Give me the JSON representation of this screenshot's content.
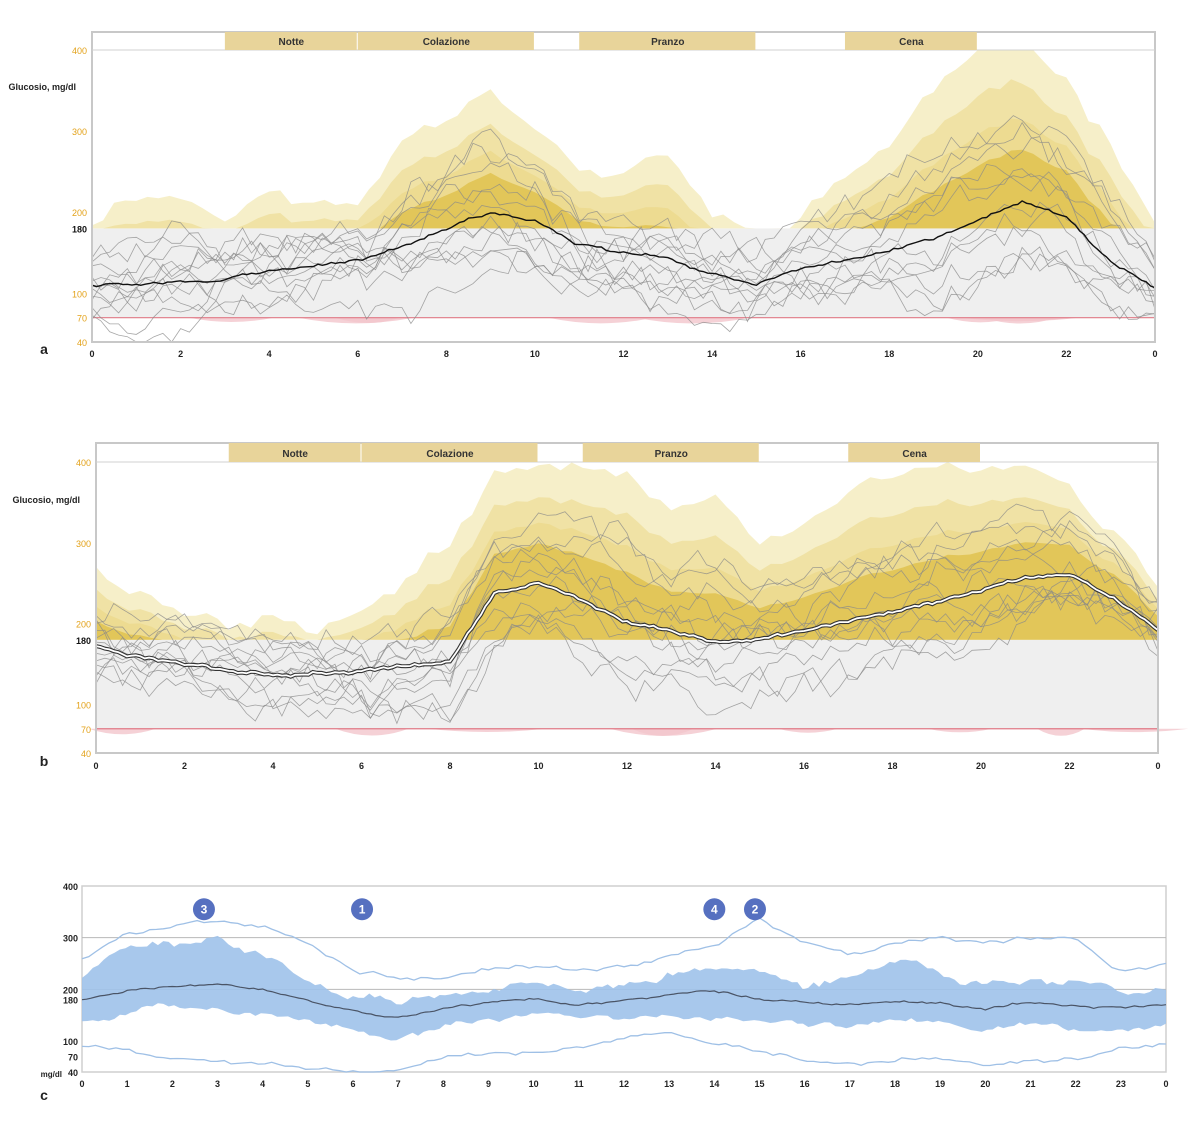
{
  "colors": {
    "yellow_light": "#f4ecc0",
    "yellow_mid": "#e9d27a",
    "yellow_dark": "#d9b52c",
    "gray_band": "#efefef",
    "pink": "#f2c6cc",
    "pink_line": "#e07a86",
    "tick_orange": "#e3a21a",
    "meal_bar": "#e8d49a",
    "blue_band": "#9ec2ea",
    "blue_line": "#9fc0e6",
    "badge": "#5670c0"
  },
  "chart_data": [
    {
      "id": "a",
      "type": "line",
      "panel_label": "a",
      "ylabel": "Glucosio, mg/dl",
      "xlim": [
        0,
        24
      ],
      "ylim": [
        40,
        400
      ],
      "x_ticks": [
        "0",
        "2",
        "4",
        "6",
        "8",
        "10",
        "12",
        "14",
        "16",
        "18",
        "20",
        "22",
        "0"
      ],
      "y_ticks": [
        {
          "value": 400,
          "label": "400",
          "color": "orange"
        },
        {
          "value": 300,
          "label": "300",
          "color": "orange"
        },
        {
          "value": 200,
          "label": "200",
          "color": "orange"
        },
        {
          "value": 180,
          "label": "180",
          "color": "black"
        },
        {
          "value": 100,
          "label": "100",
          "color": "orange"
        },
        {
          "value": 70,
          "label": "70",
          "color": "orange"
        },
        {
          "value": 40,
          "label": "40",
          "color": "orange"
        }
      ],
      "target_range": [
        70,
        180
      ],
      "meal_periods": [
        {
          "label": "Notte",
          "start": 3,
          "end": 6
        },
        {
          "label": "Colazione",
          "start": 6,
          "end": 10
        },
        {
          "label": "Pranzo",
          "start": 11,
          "end": 15
        },
        {
          "label": "Cena",
          "start": 17,
          "end": 20
        }
      ],
      "series": [
        {
          "name": "median",
          "x": [
            0,
            1,
            2,
            3,
            4,
            5,
            6,
            7,
            8,
            9,
            10,
            11,
            12,
            13,
            14,
            15,
            16,
            17,
            18,
            19,
            20,
            21,
            22,
            23,
            24
          ],
          "values": [
            110,
            112,
            116,
            120,
            126,
            132,
            142,
            158,
            178,
            200,
            188,
            160,
            150,
            140,
            120,
            108,
            128,
            142,
            152,
            168,
            188,
            212,
            198,
            140,
            102
          ]
        },
        {
          "name": "upper_envelope",
          "x": [
            0,
            1,
            2,
            3,
            4,
            5,
            6,
            7,
            8,
            9,
            10,
            11,
            12,
            13,
            14,
            15,
            16,
            17,
            18,
            19,
            20,
            21,
            22,
            23,
            24
          ],
          "values": [
            190,
            230,
            225,
            200,
            225,
            210,
            205,
            290,
            330,
            370,
            320,
            260,
            240,
            270,
            190,
            165,
            190,
            240,
            280,
            350,
            395,
            400,
            360,
            290,
            205
          ]
        }
      ]
    },
    {
      "id": "b",
      "type": "line",
      "panel_label": "b",
      "ylabel": "Glucosio, mg/dl",
      "xlim": [
        0,
        24
      ],
      "ylim": [
        40,
        400
      ],
      "x_ticks": [
        "0",
        "2",
        "4",
        "6",
        "8",
        "10",
        "12",
        "14",
        "16",
        "18",
        "20",
        "22",
        "0"
      ],
      "y_ticks": [
        {
          "value": 400,
          "label": "400",
          "color": "orange"
        },
        {
          "value": 300,
          "label": "300",
          "color": "orange"
        },
        {
          "value": 200,
          "label": "200",
          "color": "orange"
        },
        {
          "value": 180,
          "label": "180",
          "color": "black"
        },
        {
          "value": 100,
          "label": "100",
          "color": "orange"
        },
        {
          "value": 70,
          "label": "70",
          "color": "orange"
        },
        {
          "value": 40,
          "label": "40",
          "color": "orange"
        }
      ],
      "target_range": [
        70,
        180
      ],
      "meal_periods": [
        {
          "label": "Notte",
          "start": 3,
          "end": 6
        },
        {
          "label": "Colazione",
          "start": 6,
          "end": 10
        },
        {
          "label": "Pranzo",
          "start": 11,
          "end": 15
        },
        {
          "label": "Cena",
          "start": 17,
          "end": 20
        }
      ],
      "series": [
        {
          "name": "median",
          "x": [
            0,
            1,
            2,
            3,
            4,
            5,
            6,
            7,
            8,
            9,
            10,
            11,
            12,
            13,
            14,
            15,
            16,
            17,
            18,
            19,
            20,
            21,
            22,
            23,
            24
          ],
          "values": [
            172,
            160,
            150,
            142,
            136,
            138,
            140,
            146,
            150,
            238,
            254,
            232,
            206,
            192,
            180,
            182,
            190,
            200,
            212,
            226,
            242,
            256,
            262,
            236,
            192
          ]
        },
        {
          "name": "upper_envelope",
          "x": [
            0,
            1,
            2,
            3,
            4,
            5,
            6,
            7,
            8,
            9,
            10,
            11,
            12,
            13,
            14,
            15,
            16,
            17,
            18,
            19,
            20,
            21,
            22,
            23,
            24
          ],
          "values": [
            270,
            250,
            220,
            200,
            210,
            205,
            215,
            250,
            300,
            390,
            400,
            400,
            380,
            330,
            350,
            300,
            320,
            360,
            380,
            400,
            400,
            395,
            380,
            320,
            260
          ]
        }
      ]
    },
    {
      "id": "c",
      "type": "area",
      "panel_label": "c",
      "ylabel": "mg/dl",
      "xlim": [
        0,
        24
      ],
      "ylim": [
        40,
        400
      ],
      "x_ticks": [
        "0",
        "1",
        "2",
        "3",
        "4",
        "5",
        "6",
        "7",
        "8",
        "9",
        "10",
        "11",
        "12",
        "13",
        "14",
        "15",
        "16",
        "17",
        "18",
        "19",
        "20",
        "21",
        "22",
        "23",
        "0"
      ],
      "y_ticks": [
        {
          "value": 400,
          "label": "400"
        },
        {
          "value": 300,
          "label": "300"
        },
        {
          "value": 200,
          "label": "200"
        },
        {
          "value": 180,
          "label": "180"
        },
        {
          "value": 100,
          "label": "100"
        },
        {
          "value": 70,
          "label": "70"
        },
        {
          "value": 40,
          "label": "40"
        }
      ],
      "gridlines": [
        300,
        200
      ],
      "annotations": [
        {
          "label": "3",
          "x": 2.7,
          "y": 355
        },
        {
          "label": "1",
          "x": 6.2,
          "y": 355
        },
        {
          "label": "4",
          "x": 14.0,
          "y": 355
        },
        {
          "label": "2",
          "x": 14.9,
          "y": 355
        }
      ],
      "series": [
        {
          "name": "median",
          "x": [
            0,
            1,
            2,
            3,
            4,
            5,
            6,
            7,
            8,
            9,
            10,
            11,
            12,
            13,
            14,
            15,
            16,
            17,
            18,
            19,
            20,
            21,
            22,
            23,
            24
          ],
          "values": [
            180,
            195,
            208,
            210,
            200,
            180,
            160,
            150,
            166,
            176,
            180,
            166,
            176,
            186,
            194,
            180,
            170,
            170,
            176,
            172,
            160,
            174,
            170,
            164,
            170
          ]
        },
        {
          "name": "p75",
          "x": [
            0,
            1,
            2,
            3,
            4,
            5,
            6,
            7,
            8,
            9,
            10,
            11,
            12,
            13,
            14,
            15,
            16,
            17,
            18,
            19,
            20,
            21,
            22,
            23,
            24
          ],
          "values": [
            225,
            270,
            285,
            300,
            275,
            225,
            190,
            180,
            195,
            205,
            210,
            190,
            205,
            225,
            235,
            215,
            195,
            215,
            240,
            230,
            200,
            215,
            220,
            200,
            210
          ]
        },
        {
          "name": "p25",
          "x": [
            0,
            1,
            2,
            3,
            4,
            5,
            6,
            7,
            8,
            9,
            10,
            11,
            12,
            13,
            14,
            15,
            16,
            17,
            18,
            19,
            20,
            21,
            22,
            23,
            24
          ],
          "values": [
            140,
            150,
            160,
            155,
            150,
            140,
            125,
            110,
            130,
            145,
            145,
            135,
            140,
            150,
            150,
            145,
            140,
            135,
            140,
            135,
            125,
            130,
            125,
            125,
            130
          ]
        },
        {
          "name": "p90",
          "x": [
            0,
            1,
            2,
            3,
            4,
            5,
            6,
            7,
            8,
            9,
            10,
            11,
            12,
            13,
            14,
            15,
            16,
            17,
            18,
            19,
            20,
            21,
            22,
            23,
            24
          ],
          "values": [
            260,
            310,
            330,
            335,
            320,
            280,
            240,
            225,
            225,
            235,
            240,
            230,
            245,
            260,
            285,
            335,
            290,
            265,
            285,
            290,
            290,
            300,
            300,
            235,
            250
          ]
        },
        {
          "name": "p10",
          "x": [
            0,
            1,
            2,
            3,
            4,
            5,
            6,
            7,
            8,
            9,
            10,
            11,
            12,
            13,
            14,
            15,
            16,
            17,
            18,
            19,
            20,
            21,
            22,
            23,
            24
          ],
          "values": [
            90,
            80,
            70,
            65,
            55,
            45,
            40,
            40,
            60,
            75,
            80,
            90,
            105,
            110,
            95,
            75,
            60,
            55,
            60,
            70,
            55,
            60,
            60,
            80,
            90
          ]
        }
      ]
    }
  ]
}
